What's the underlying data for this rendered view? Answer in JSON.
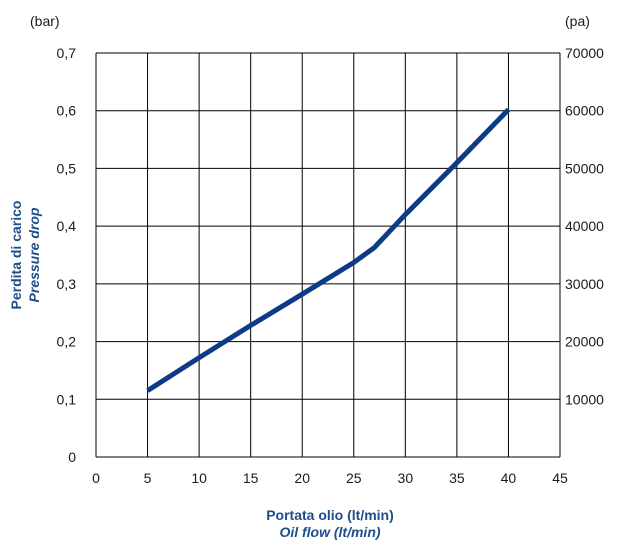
{
  "chart_data": {
    "type": "line",
    "left_unit": "(bar)",
    "right_unit": "(pa)",
    "ylabel": "Perdita  di  carico",
    "ylabel_en": "Pressure  drop",
    "xlabel": "Portata  olio  (lt/min)",
    "xlabel_en": "Oil  flow  (lt/min)",
    "xlim": [
      0,
      45
    ],
    "ylim": [
      0,
      0.7
    ],
    "y2lim": [
      0,
      70000
    ],
    "grid": true,
    "x_ticks": [
      "0",
      "5",
      "10",
      "15",
      "20",
      "25",
      "30",
      "35",
      "40",
      "45"
    ],
    "y_ticks": [
      "0",
      "0,1",
      "0,2",
      "0,3",
      "0,4",
      "0,5",
      "0,6",
      "0,7"
    ],
    "y2_ticks": [
      "10000",
      "20000",
      "30000",
      "40000",
      "50000",
      "60000",
      "70000"
    ],
    "line_color": "#0d3b87",
    "series": [
      {
        "x": [
          5,
          10,
          15,
          20,
          25,
          27,
          30,
          35,
          40
        ],
        "y": [
          0.115,
          0.172,
          0.228,
          0.282,
          0.337,
          0.363,
          0.42,
          0.51,
          0.602
        ]
      }
    ]
  }
}
